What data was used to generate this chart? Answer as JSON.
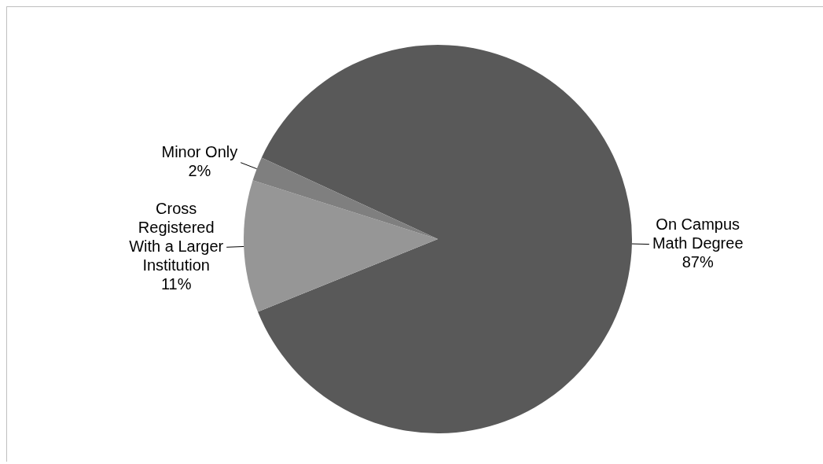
{
  "chart_data": {
    "type": "pie",
    "categories": [
      "On Campus Math Degree",
      "Cross Registered With a Larger Institution",
      "Minor Only"
    ],
    "values": [
      87,
      11,
      2
    ],
    "value_labels": [
      "87%",
      "11%",
      "2%"
    ],
    "colors": [
      "#595959",
      "#969696",
      "#7f7f7f"
    ],
    "legend": false
  }
}
